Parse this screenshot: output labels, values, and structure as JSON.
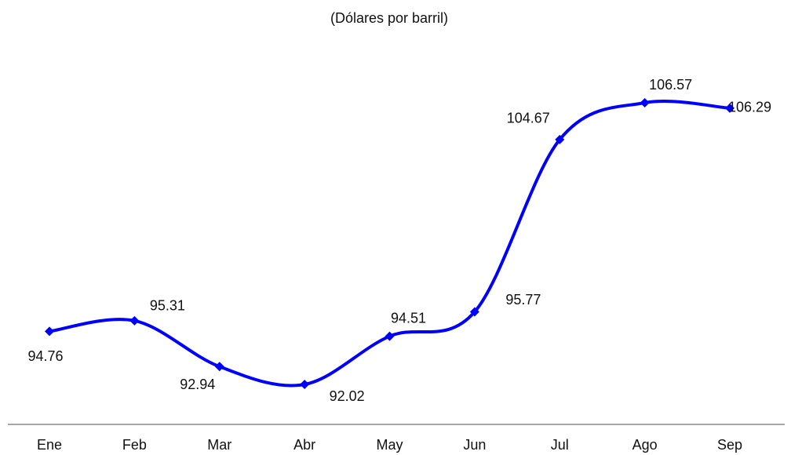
{
  "chart_data": {
    "type": "line",
    "subtitle": "(Dólares por barril)",
    "categories": [
      "Ene",
      "Feb",
      "Mar",
      "Abr",
      "May",
      "Jun",
      "Jul",
      "Ago",
      "Sep"
    ],
    "series": [
      {
        "name": null,
        "color": "#0000ff",
        "values": [
          94.76,
          95.31,
          92.94,
          92.02,
          94.51,
          95.77,
          104.67,
          106.57,
          106.29
        ]
      }
    ]
  }
}
